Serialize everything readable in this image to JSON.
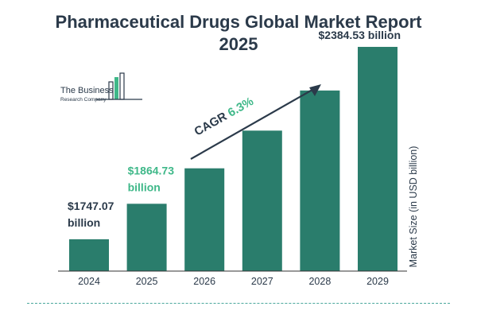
{
  "title_line1": "Pharmaceutical Drugs Global Market Report",
  "title_line2": "2025",
  "logo": {
    "line1": "The Business",
    "line2": "Research Company"
  },
  "colors": {
    "bar": "#2a7d6c",
    "title": "#2b3a4a",
    "highlight": "#3fb889",
    "dark_text": "#2b3a4a"
  },
  "chart_data": {
    "type": "bar",
    "categories": [
      "2024",
      "2025",
      "2026",
      "2027",
      "2028",
      "2029"
    ],
    "values": [
      1747.07,
      1864.73,
      1982.2,
      2107.1,
      2240.0,
      2384.53
    ],
    "ylabel": "Market Size (in USD billion)",
    "y_axis_ticks_shown": false,
    "grid": false,
    "annotations": [
      {
        "index": 0,
        "text_line1": "$1747.07",
        "text_line2": "billion",
        "color": "#2b3a4a"
      },
      {
        "index": 1,
        "text_line1": "$1864.73",
        "text_line2": "billion",
        "color": "#3fb889"
      },
      {
        "index": 5,
        "text_line1": "$2384.53 billion",
        "text_line2": "",
        "color": "#2b3a4a"
      }
    ],
    "cagr": {
      "label": "CAGR",
      "value": "6.3%"
    }
  }
}
